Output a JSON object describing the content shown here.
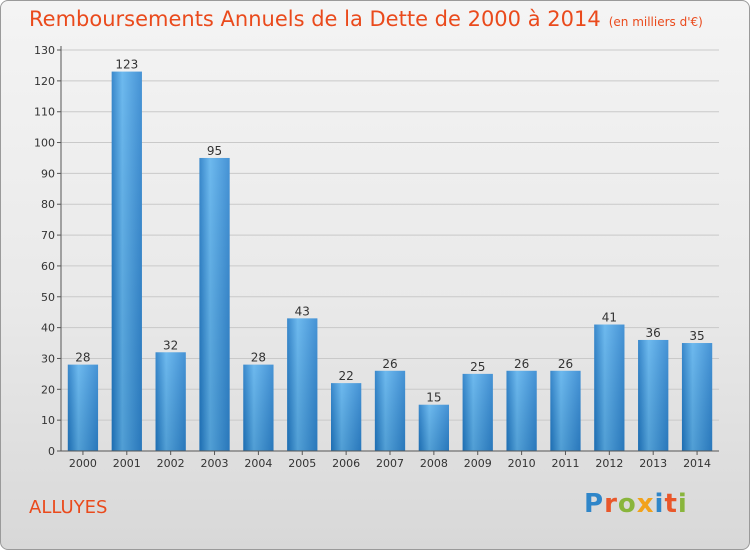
{
  "title": "Remboursements Annuels de la Dette de 2000 à 2014",
  "unit": "(en milliers d'€)",
  "town": "ALLUYES",
  "logo": {
    "letters": [
      "P",
      "r",
      "o",
      "x",
      "i",
      "t",
      "i"
    ],
    "colors": [
      "#2f86c9",
      "#e9572a",
      "#89b53c",
      "#f2a21b",
      "#2f86c9",
      "#e9572a",
      "#89b53c"
    ]
  },
  "colors": {
    "bar": "#2f8dd6",
    "title": "#ea4a1c"
  },
  "chart_data": {
    "type": "bar",
    "categories": [
      "2000",
      "2001",
      "2002",
      "2003",
      "2004",
      "2005",
      "2006",
      "2007",
      "2008",
      "2009",
      "2010",
      "2011",
      "2012",
      "2013",
      "2014"
    ],
    "values": [
      28,
      123,
      32,
      95,
      28,
      43,
      22,
      26,
      15,
      25,
      26,
      26,
      41,
      36,
      35
    ],
    "ylim": [
      0,
      130
    ],
    "yticks": [
      0,
      10,
      20,
      30,
      40,
      50,
      60,
      70,
      80,
      90,
      100,
      110,
      120,
      130
    ],
    "grid": true
  }
}
